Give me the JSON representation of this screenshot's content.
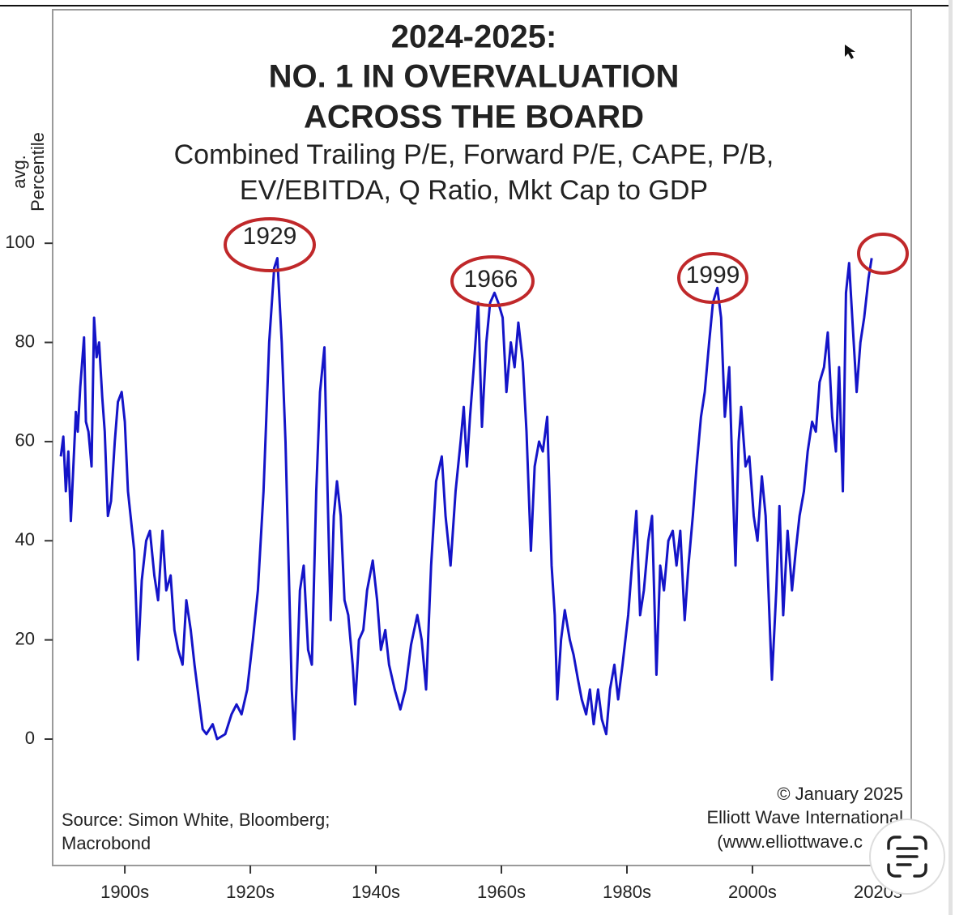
{
  "chart_data": {
    "type": "line",
    "title_lines": [
      "2024-2025:",
      "NO. 1 IN OVERVALUATION",
      "ACROSS THE BOARD"
    ],
    "subtitle_lines": [
      "Combined Trailing P/E, Forward P/E, CAPE, P/B,",
      "EV/EBITDA, Q Ratio, Mkt Cap to GDP"
    ],
    "ylabel_lines": [
      "avg.",
      "Percentile"
    ],
    "annotations": [
      "1929",
      "1966",
      "1999"
    ],
    "source_lines": [
      "Source: Simon White, Bloomberg;",
      "Macrobond"
    ],
    "credit_lines": [
      "© January 2025",
      "Elliott Wave International",
      "(www.elliottwave.c"
    ],
    "color": "#1414c8",
    "xlim": [
      1893.5,
      2030.3
    ],
    "ylim": [
      -25.5,
      147.1
    ],
    "yticks": [
      0,
      20,
      40,
      60,
      80,
      100
    ],
    "xticks": [
      {
        "value": 1905,
        "label": "1900s"
      },
      {
        "value": 1925,
        "label": "1920s"
      },
      {
        "value": 1945,
        "label": "1940s"
      },
      {
        "value": 1965,
        "label": "1960s"
      },
      {
        "value": 1985,
        "label": "1980s"
      },
      {
        "value": 2005,
        "label": "2000s"
      },
      {
        "value": 2025,
        "label": "2020s"
      }
    ],
    "x": [
      1894.8,
      1895.2,
      1895.6,
      1896.0,
      1896.4,
      1896.8,
      1897.2,
      1897.5,
      1897.9,
      1898.5,
      1898.8,
      1899.2,
      1899.7,
      1900.1,
      1900.5,
      1900.9,
      1901.4,
      1901.8,
      1902.3,
      1902.8,
      1903.4,
      1903.9,
      1904.5,
      1905.0,
      1905.5,
      1906.5,
      1907.1,
      1907.7,
      1908.4,
      1909.0,
      1909.7,
      1910.3,
      1911.0,
      1911.6,
      1912.3,
      1912.9,
      1913.5,
      1914.2,
      1914.8,
      1915.5,
      1916.1,
      1916.8,
      1917.4,
      1918.0,
      1919.0,
      1919.7,
      1921.0,
      1922.0,
      1922.8,
      1923.6,
      1924.5,
      1925.4,
      1926.2,
      1927.1,
      1928.0,
      1928.8,
      1929.3,
      1930.0,
      1930.6,
      1931.1,
      1931.6,
      1932.0,
      1932.4,
      1932.9,
      1933.5,
      1934.2,
      1934.8,
      1935.5,
      1936.1,
      1936.8,
      1937.3,
      1937.8,
      1938.3,
      1938.8,
      1939.4,
      1940.0,
      1940.6,
      1941.3,
      1941.7,
      1942.3,
      1943.0,
      1943.6,
      1944.5,
      1945.2,
      1945.8,
      1946.5,
      1947.1,
      1948.0,
      1948.9,
      1949.7,
      1950.6,
      1951.6,
      1952.3,
      1953.0,
      1953.8,
      1954.6,
      1955.5,
      1956.1,
      1956.9,
      1957.7,
      1958.5,
      1959.0,
      1959.5,
      1960.0,
      1960.6,
      1961.3,
      1961.9,
      1962.6,
      1963.2,
      1963.9,
      1964.5,
      1965.2,
      1965.8,
      1966.5,
      1967.1,
      1967.7,
      1968.4,
      1969.0,
      1969.7,
      1970.3,
      1971.0,
      1971.6,
      1972.3,
      1973.0,
      1973.5,
      1973.9,
      1974.5,
      1975.1,
      1975.9,
      1976.5,
      1977.2,
      1977.8,
      1978.5,
      1979.1,
      1979.7,
      1980.4,
      1981.0,
      1981.7,
      1982.3,
      1983.0,
      1983.6,
      1984.3,
      1985.2,
      1985.8,
      1986.5,
      1987.1,
      1987.7,
      1988.4,
      1989.0,
      1989.7,
      1990.3,
      1990.9,
      1991.6,
      1992.3,
      1992.9,
      1993.5,
      1994.2,
      1994.8,
      1995.5,
      1996.1,
      1996.8,
      1997.4,
      1998.1,
      1998.7,
      1999.4,
      2000.0,
      2000.6,
      2001.3,
      2001.9,
      2002.3,
      2002.8,
      2003.2,
      2003.9,
      2004.5,
      2005.2,
      2005.8,
      2006.5,
      2007.1,
      2007.7,
      2008.1,
      2008.8,
      2009.3,
      2009.9,
      2010.6,
      2011.3,
      2011.9,
      2012.5,
      2013.2,
      2013.8,
      2014.5,
      2015.1,
      2015.7,
      2016.4,
      2017.0,
      2017.7,
      2018.3,
      2018.8,
      2019.4,
      2019.9,
      2020.4,
      2020.9,
      2021.6,
      2022.2,
      2022.8,
      2023.5,
      2024.0
    ],
    "values": [
      57,
      61,
      50,
      58,
      44,
      55,
      66,
      62,
      71,
      81,
      64,
      62,
      55,
      85,
      77,
      80,
      69,
      62,
      45,
      48,
      60,
      68,
      70,
      64,
      50,
      38,
      16,
      32,
      40,
      42,
      33,
      28,
      42,
      30,
      33,
      22,
      18,
      15,
      28,
      22,
      15,
      8,
      2,
      1,
      3,
      0,
      1,
      5,
      7,
      5,
      10,
      20,
      30,
      50,
      80,
      95,
      97,
      80,
      60,
      35,
      10,
      0,
      12,
      30,
      35,
      18,
      15,
      50,
      70,
      79,
      50,
      24,
      45,
      52,
      45,
      28,
      25,
      15,
      7,
      20,
      22,
      30,
      36,
      28,
      18,
      22,
      15,
      10,
      6,
      10,
      19,
      25,
      20,
      10,
      35,
      52,
      57,
      45,
      35,
      50,
      60,
      67,
      55,
      65,
      75,
      88,
      63,
      80,
      88,
      90,
      88,
      85,
      70,
      80,
      75,
      84,
      76,
      62,
      38,
      55,
      60,
      58,
      65,
      35,
      25,
      8,
      20,
      26,
      20,
      17,
      12,
      8,
      5,
      10,
      3,
      10,
      4,
      1,
      10,
      15,
      8,
      15,
      25,
      35,
      46,
      25,
      30,
      40,
      45,
      13,
      35,
      30,
      40,
      42,
      35,
      42,
      24,
      35,
      45,
      55,
      65,
      70,
      80,
      88,
      91,
      85,
      65,
      75,
      50,
      35,
      60,
      67,
      55,
      57,
      45,
      40,
      53,
      45,
      25,
      12,
      30,
      47,
      25,
      42,
      30,
      38,
      45,
      50,
      58,
      64,
      62,
      72,
      75,
      82,
      65,
      58,
      75,
      50,
      90,
      96,
      85,
      70,
      80,
      85,
      93,
      97
    ]
  }
}
